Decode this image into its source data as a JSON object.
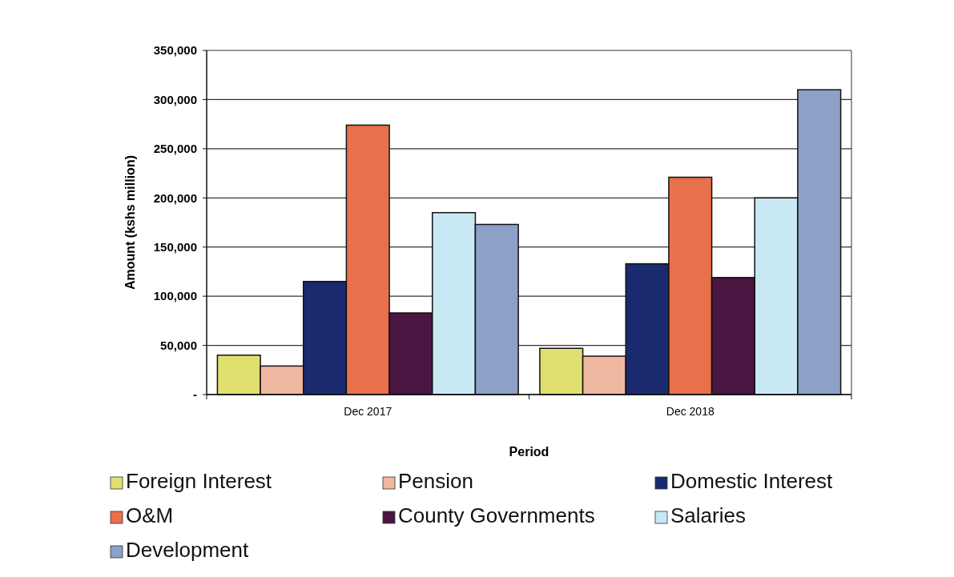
{
  "chart_data": {
    "type": "bar",
    "xlabel": "Period",
    "ylabel": "Amount (kshs million)",
    "categories": [
      "Dec 2017",
      "Dec 2018"
    ],
    "series": [
      {
        "name": "Foreign Interest",
        "color": "#e0e070",
        "values": [
          40000,
          47000
        ]
      },
      {
        "name": "Pension",
        "color": "#f0b8a0",
        "values": [
          29000,
          39000
        ]
      },
      {
        "name": "Domestic Interest",
        "color": "#1a2a6e",
        "values": [
          115000,
          133000
        ]
      },
      {
        "name": "O&M",
        "color": "#e8704a",
        "values": [
          274000,
          221000
        ]
      },
      {
        "name": "County Governments",
        "color": "#4a1540",
        "values": [
          83000,
          119000
        ]
      },
      {
        "name": "Salaries",
        "color": "#c8e8f4",
        "values": [
          185000,
          200000
        ]
      },
      {
        "name": "Development",
        "color": "#8ca0c8",
        "values": [
          173000,
          310000
        ]
      }
    ],
    "ylim": [
      0,
      350000
    ],
    "yticks": [
      {
        "value": 0,
        "label": "-"
      },
      {
        "value": 50000,
        "label": "50,000"
      },
      {
        "value": 100000,
        "label": "100,000"
      },
      {
        "value": 150000,
        "label": "150,000"
      },
      {
        "value": 200000,
        "label": "200,000"
      },
      {
        "value": 250000,
        "label": "250,000"
      },
      {
        "value": 300000,
        "label": "300,000"
      },
      {
        "value": 350000,
        "label": "350,000"
      }
    ],
    "grid": "y",
    "legend": "bottom"
  }
}
